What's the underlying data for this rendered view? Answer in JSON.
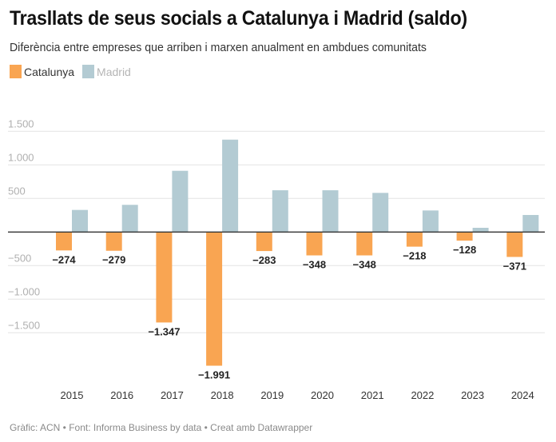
{
  "header": {
    "title": "Trasllats de seus socials a Catalunya i Madrid (saldo)",
    "subtitle": "Diferència entre empreses que arriben i marxen anualment en ambdues comunitats"
  },
  "legend": [
    {
      "name": "Catalunya",
      "color": "#f9a552"
    },
    {
      "name": "Madrid",
      "color": "#b3cbd3"
    }
  ],
  "footer": "Gràfic: ACN • Font: Informa Business by data  • Creat amb Datawrapper",
  "chart_data": {
    "type": "bar",
    "title": "Trasllats de seus socials a Catalunya i Madrid (saldo)",
    "subtitle": "Diferència entre empreses que arriben i marxen anualment en ambdues comunitats",
    "xlabel": "",
    "ylabel": "",
    "categories": [
      "2015",
      "2016",
      "2017",
      "2018",
      "2019",
      "2020",
      "2021",
      "2022",
      "2023",
      "2024"
    ],
    "series": [
      {
        "name": "Catalunya",
        "color": "#f9a552",
        "values": [
          -274,
          -279,
          -1347,
          -1991,
          -283,
          -348,
          -348,
          -218,
          -128,
          -371
        ],
        "labels": [
          "−274",
          "−279",
          "−1.347",
          "−1.991",
          "−283",
          "−348",
          "−348",
          "−218",
          "−128",
          "−371"
        ]
      },
      {
        "name": "Madrid",
        "color": "#b3cbd3",
        "values": [
          329,
          405,
          912,
          1376,
          622,
          622,
          583,
          321,
          63,
          254
        ],
        "labels": null
      }
    ],
    "yticks": [
      1500,
      1000,
      500,
      0,
      -500,
      -1000,
      -1500
    ],
    "ytick_labels": [
      "1.500",
      "1.000",
      "500",
      "",
      "−500",
      "−1.000",
      "−1.500"
    ],
    "ylim": [
      -2000,
      1500
    ],
    "grid": true,
    "legend_position": "top-left"
  }
}
